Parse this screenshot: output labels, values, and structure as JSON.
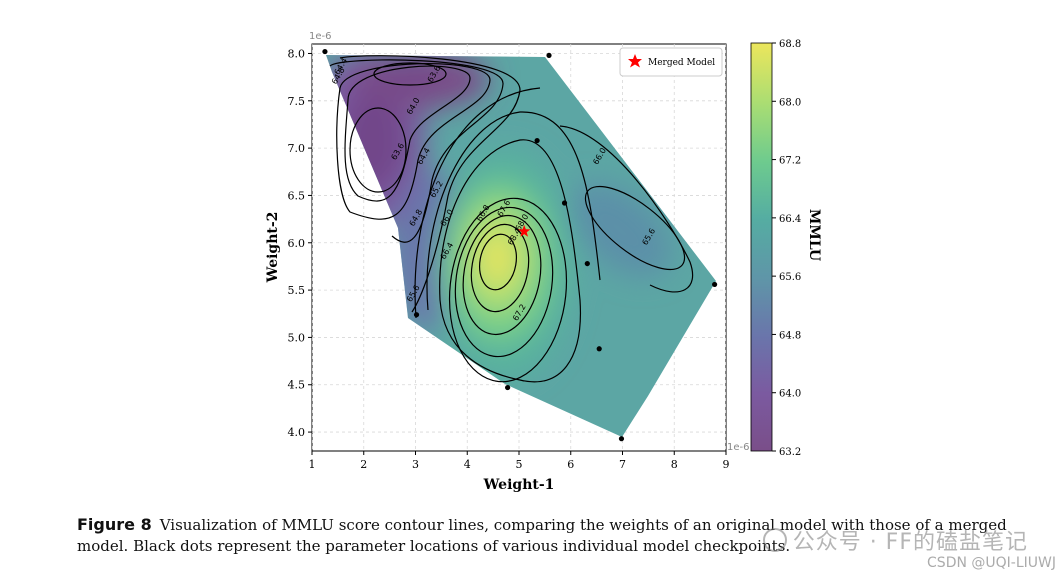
{
  "chart_data": {
    "type": "contour",
    "xlabel": "Weight-1",
    "ylabel": "Weight-2",
    "x_ticks": [
      "1",
      "2",
      "3",
      "4",
      "5",
      "6",
      "7",
      "8",
      "9"
    ],
    "y_ticks": [
      "4.0",
      "4.5",
      "5.0",
      "5.5",
      "6.0",
      "6.5",
      "7.0",
      "7.5",
      "8.0"
    ],
    "x_scale_label": "1e-6",
    "y_scale_label": "1e-6",
    "xlim": [
      1,
      9
    ],
    "ylim": [
      3.8,
      8.1
    ],
    "grid": true,
    "colorbar": {
      "label": "MMLU",
      "range": [
        63.2,
        68.8
      ],
      "ticks": [
        "63.2",
        "64.0",
        "64.8",
        "65.6",
        "66.4",
        "67.2",
        "68.0",
        "68.8"
      ]
    },
    "contour_labels": [
      {
        "text": "64.4",
        "x": 1.6,
        "y": 7.85
      },
      {
        "text": "64.8",
        "x": 1.55,
        "y": 7.75
      },
      {
        "text": "63.6",
        "x": 3.4,
        "y": 7.77
      },
      {
        "text": "64.0",
        "x": 3.0,
        "y": 7.43
      },
      {
        "text": "63.6",
        "x": 2.7,
        "y": 6.95
      },
      {
        "text": "64.4",
        "x": 3.2,
        "y": 6.9
      },
      {
        "text": "65.2",
        "x": 3.45,
        "y": 6.55
      },
      {
        "text": "64.8",
        "x": 3.05,
        "y": 6.25
      },
      {
        "text": "66.0",
        "x": 3.65,
        "y": 6.25
      },
      {
        "text": "66.4",
        "x": 3.65,
        "y": 5.9
      },
      {
        "text": "65.6",
        "x": 3.0,
        "y": 5.45
      },
      {
        "text": "66.8",
        "x": 4.35,
        "y": 6.3
      },
      {
        "text": "67.6",
        "x": 4.75,
        "y": 6.35
      },
      {
        "text": "68.0",
        "x": 5.1,
        "y": 6.2
      },
      {
        "text": "68.4",
        "x": 4.95,
        "y": 6.05
      },
      {
        "text": "67.2",
        "x": 5.05,
        "y": 5.25
      },
      {
        "text": "66.0",
        "x": 6.6,
        "y": 6.9
      },
      {
        "text": "65.6",
        "x": 7.55,
        "y": 6.05
      }
    ],
    "checkpoints": [
      {
        "x": 1.25,
        "y": 8.02
      },
      {
        "x": 5.58,
        "y": 7.98
      },
      {
        "x": 5.35,
        "y": 7.08
      },
      {
        "x": 5.88,
        "y": 6.42
      },
      {
        "x": 6.32,
        "y": 5.78
      },
      {
        "x": 3.02,
        "y": 5.24
      },
      {
        "x": 8.78,
        "y": 5.56
      },
      {
        "x": 6.55,
        "y": 4.88
      },
      {
        "x": 4.78,
        "y": 4.47
      },
      {
        "x": 6.98,
        "y": 3.93
      }
    ],
    "merged_model": {
      "x": 5.1,
      "y": 6.12
    },
    "legend": {
      "entries": [
        "Merged Model"
      ],
      "placement": "top-right"
    }
  },
  "caption": {
    "label": "Figure 8",
    "text": "Visualization of MMLU score contour lines, comparing the weights of an original model with those of a merged model. Black dots represent the parameter locations of various individual model checkpoints."
  },
  "watermark": {
    "text": "公众号 · FF的磕盐笔记",
    "csdn": "CSDN @UQI-LIUWJ"
  }
}
